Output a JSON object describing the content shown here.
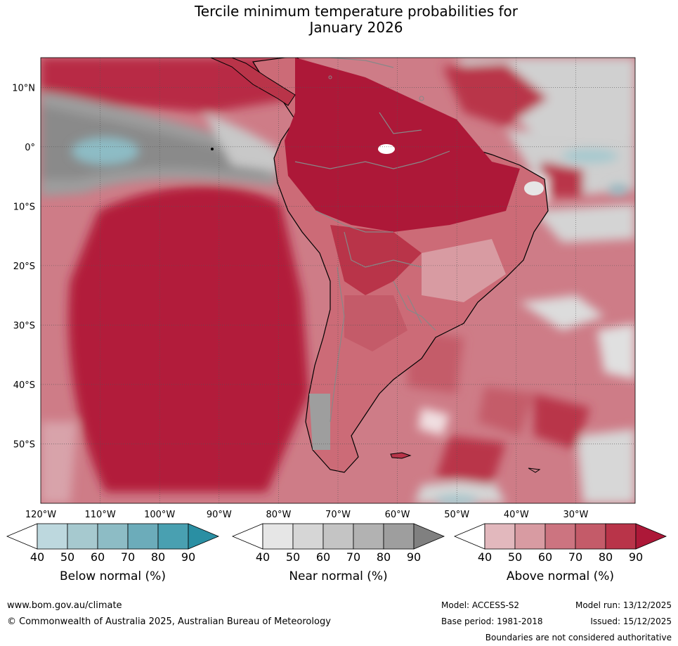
{
  "title": {
    "line1": "Tercile minimum temperature probabilities for",
    "line2": "January 2026"
  },
  "map": {
    "lat_labels": [
      "10°N",
      "0°",
      "10°S",
      "20°S",
      "30°S",
      "40°S",
      "50°S"
    ],
    "lon_labels": [
      "120°W",
      "110°W",
      "100°W",
      "90°W",
      "80°W",
      "70°W",
      "60°W",
      "50°W",
      "40°W",
      "30°W"
    ],
    "lat_range": [
      -60,
      15
    ],
    "lon_range": [
      -120,
      -20
    ]
  },
  "legends": [
    {
      "label": "Below normal (%)",
      "ticks": [
        "40",
        "50",
        "60",
        "70",
        "80",
        "90"
      ],
      "colors": [
        "#ffffff",
        "#bdd8de",
        "#a6c9cf",
        "#8dbcc5",
        "#6cacba",
        "#49a0b1",
        "#2a8fa3"
      ]
    },
    {
      "label": "Near normal (%)",
      "ticks": [
        "40",
        "50",
        "60",
        "70",
        "80",
        "90"
      ],
      "colors": [
        "#ffffff",
        "#e6e6e6",
        "#d6d6d6",
        "#c4c4c4",
        "#b2b2b2",
        "#9e9e9e",
        "#808080"
      ]
    },
    {
      "label": "Above normal (%)",
      "ticks": [
        "40",
        "50",
        "60",
        "70",
        "80",
        "90"
      ],
      "colors": [
        "#ffffff",
        "#e2b8bd",
        "#d89ba2",
        "#cc7480",
        "#c45b69",
        "#b93449",
        "#ad1838"
      ]
    }
  ],
  "footer": {
    "url": "www.bom.gov.au/climate",
    "copyright": "© Commonwealth of Australia 2025, Australian Bureau of Meteorology",
    "model": "Model: ACCESS-S2",
    "model_run": "Model run: 13/12/2025",
    "base_period": "Base period: 1981-2018",
    "issued": "Issued: 15/12/2025",
    "disclaimer": "Boundaries are not considered authoritative"
  }
}
